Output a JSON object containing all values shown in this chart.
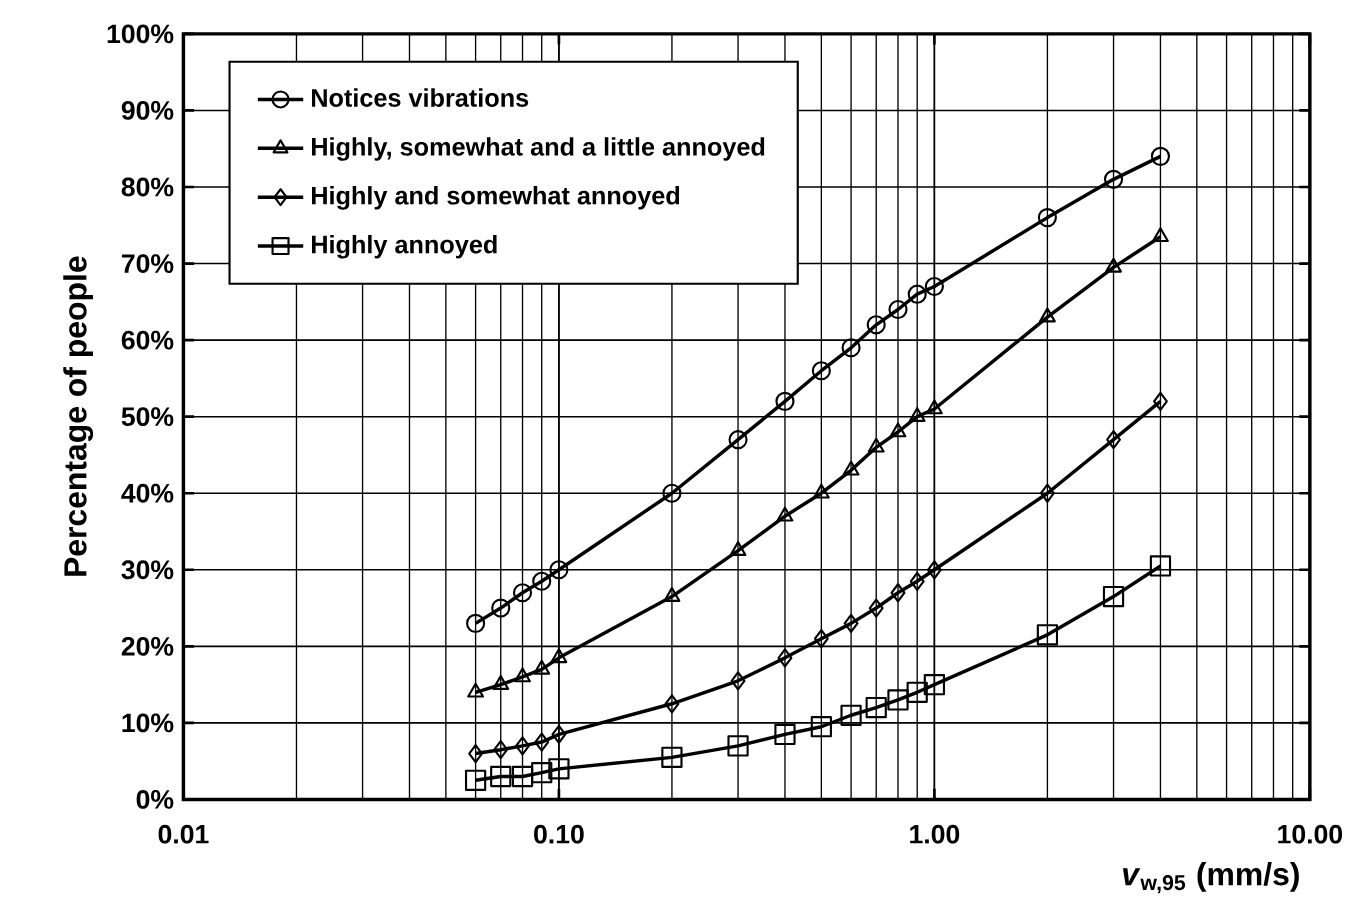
{
  "chart_data": {
    "type": "line",
    "xlabel": "*v*$_{w,95}$ (mm/s)",
    "ylabel": "Percentage of people",
    "x": [
      0.06,
      0.07,
      0.08,
      0.09,
      0.1,
      0.2,
      0.3,
      0.4,
      0.5,
      0.6,
      0.7,
      0.8,
      0.9,
      1.0,
      2,
      3,
      4
    ],
    "series": [
      {
        "name": "Notices vibrations",
        "color": "#000000",
        "marker": "circle",
        "values": [
          23,
          25,
          27,
          28.5,
          30,
          40,
          47,
          52,
          56,
          59,
          62,
          64,
          66,
          67,
          76,
          81,
          84
        ]
      },
      {
        "name": "Highly, somewhat and a little annoyed",
        "color": "#000000",
        "marker": "triangle",
        "values": [
          14,
          15,
          16,
          17,
          18.5,
          26.5,
          32.5,
          37,
          40,
          43,
          46,
          48,
          50,
          51,
          63,
          69.5,
          73.5
        ]
      },
      {
        "name": "Highly and somewhat annoyed",
        "color": "#000000",
        "marker": "diamond",
        "values": [
          6,
          6.5,
          7,
          7.5,
          8.5,
          12.5,
          15.5,
          18.5,
          21,
          23,
          25,
          27,
          28.5,
          30,
          40,
          47,
          52
        ]
      },
      {
        "name": "Highly annoyed",
        "color": "#000000",
        "marker": "square",
        "values": [
          2.5,
          3,
          3,
          3.5,
          4,
          5.5,
          7,
          8.5,
          9.5,
          11,
          12,
          13,
          14,
          15,
          21.5,
          26.5,
          30.5
        ]
      }
    ],
    "log": "x",
    "xlim": [
      0.01,
      10
    ],
    "ylim": [
      0,
      100
    ],
    "xticks": [
      {
        "value": 0.01,
        "label": "0.01"
      },
      {
        "value": 0.1,
        "label": "0.10"
      },
      {
        "value": 1,
        "label": "1.00"
      },
      {
        "value": 10,
        "label": "10.00"
      }
    ],
    "yticks": [
      {
        "value": 0,
        "label": "0%"
      },
      {
        "value": 10,
        "label": "10%"
      },
      {
        "value": 20,
        "label": "20%"
      },
      {
        "value": 30,
        "label": "30%"
      },
      {
        "value": 40,
        "label": "40%"
      },
      {
        "value": 50,
        "label": "50%"
      },
      {
        "value": 60,
        "label": "60%"
      },
      {
        "value": 70,
        "label": "70%"
      },
      {
        "value": 80,
        "label": "80%"
      },
      {
        "value": 90,
        "label": "90%"
      },
      {
        "value": 100,
        "label": "100%"
      }
    ],
    "grid": true,
    "legend": "top left",
    "line_style": "solid"
  }
}
